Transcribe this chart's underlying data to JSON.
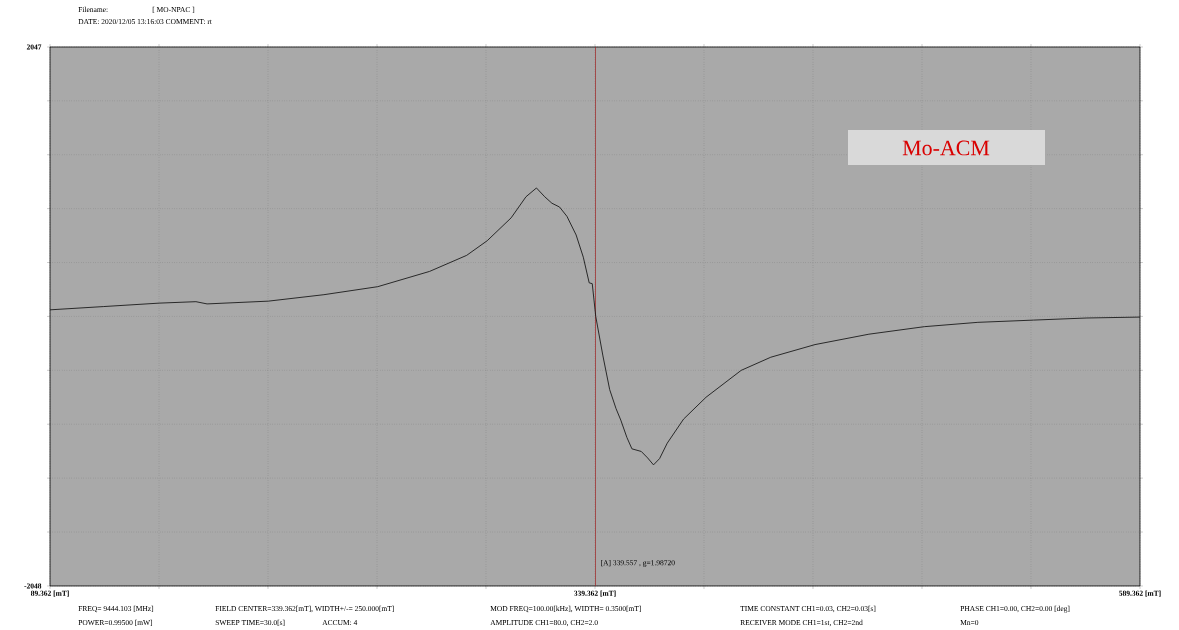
{
  "chart_data": {
    "type": "line",
    "color": "#1a1a1a",
    "xlim": [
      89.362,
      589.362
    ],
    "ylim": [
      -2048,
      2047
    ],
    "x": [
      89.362,
      114,
      139.4,
      156.3,
      161.4,
      189.5,
      215,
      239.7,
      263.5,
      280.5,
      289.9,
      300.9,
      307.7,
      312.5,
      316.3,
      319.6,
      323.1,
      326.5,
      330.7,
      334,
      336.7,
      338.1,
      339.7,
      343,
      346.1,
      349,
      351.2,
      354,
      356.3,
      360.6,
      363.5,
      366.2,
      369,
      372.5,
      380,
      390.3,
      406.4,
      420,
      440.3,
      465,
      490.4,
      515,
      540.5,
      565,
      589.362
    ],
    "values": [
      50,
      75,
      101,
      112,
      95,
      116,
      165,
      226,
      342,
      464,
      575,
      749,
      909,
      976,
      909,
      860,
      831,
      760,
      619,
      450,
      255,
      249,
      0,
      -300,
      -556,
      -700,
      -788,
      -920,
      -1006,
      -1026,
      -1075,
      -1128,
      -1080,
      -963,
      -780,
      -614,
      -410,
      -310,
      -214,
      -135,
      -78,
      -45,
      -28,
      -12,
      -5
    ],
    "xticks": [
      {
        "value": 89.362,
        "label": "89.362  [mT]"
      },
      {
        "value": 139.362,
        "label": null
      },
      {
        "value": 189.362,
        "label": null
      },
      {
        "value": 239.362,
        "label": null
      },
      {
        "value": 289.362,
        "label": null
      },
      {
        "value": 339.362,
        "label": "339.362 [mT]"
      },
      {
        "value": 389.362,
        "label": null
      },
      {
        "value": 439.362,
        "label": null
      },
      {
        "value": 489.362,
        "label": null
      },
      {
        "value": 539.362,
        "label": null
      },
      {
        "value": 589.362,
        "label": "589.362 [mT]"
      }
    ],
    "yticks": [
      -2048,
      {
        "value": -1638,
        "label": null
      },
      {
        "value": -1228.5,
        "label": null
      },
      {
        "value": -819,
        "label": null
      },
      {
        "value": -409.5,
        "label": null
      },
      {
        "value": 0,
        "label": null
      },
      {
        "value": 409.5,
        "label": null
      },
      {
        "value": 819,
        "label": null
      },
      {
        "value": 1228.5,
        "label": null
      },
      {
        "value": 1638,
        "label": null
      },
      2047
    ],
    "grid": true,
    "ref_lines": [
      {
        "axis": "x",
        "value": 339.557,
        "label": "[A]  339.557 , g=1.98720",
        "color": "#a02828"
      }
    ],
    "annotations": [
      "Filename:",
      "[ MO-NPAC ]",
      "DATE: 2020/12/05 13:16:03 COMMENT: rt",
      "Mo-ACM",
      "FREQ= 9444.103 [MHz]",
      "FIELD CENTER=339.362[mT], WIDTH+/-= 250.000[mT]",
      "MOD FREQ=100.00[kHz], WIDTH=  0.3500[mT]",
      "TIME CONSTANT CH1=0.03, CH2=0.03[s]",
      "PHASE CH1=0.00, CH2=0.00 [deg]",
      "POWER=0.99500 [mW]",
      "SWEEP TIME=30.0[s]",
      "ACCUM: 4",
      "AMPLITUDE CH1=80.0, CH2=2.0",
      "RECEIVER MODE CH1=1st, CH2=2nd",
      "Mn=0"
    ]
  }
}
